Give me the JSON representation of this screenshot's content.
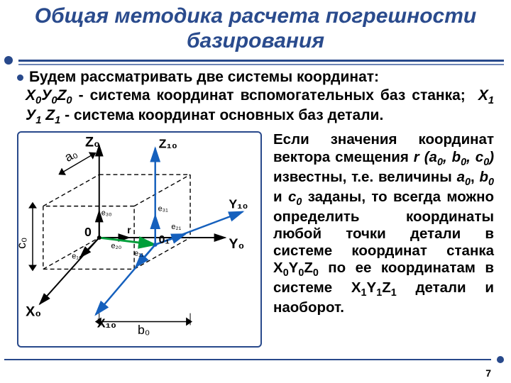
{
  "title": "Общая методика расчета погрешности базирования",
  "bullet": "Будем рассматривать две системы координат:",
  "para_html": "<span class='ital'>X<sub>0</sub>У<sub>0</sub>Z<sub>0</sub></span> - система координат вспомогательных баз станка;&nbsp; <span class='ital'>X<sub>1</sub> У<sub>1</sub> Z<sub>1</sub></span> - система координат основных баз детали.",
  "right_html": "Если значения координат вектора смещения <span class='ital'>r (a<sub>0</sub>, b<sub>0</sub>, c<sub>0</sub>)</span> известны, т.е. величины <span class='ital'>a<sub>0</sub></span>, <span class='ital'>b<sub>0</sub></span> и <span class='ital'>c<sub>0</sub></span> заданы, то всегда можно определить координаты любой точки детали в системе координат станка X<sub>0</sub>Y<sub>0</sub>Z<sub>0</sub> по ее координатам в системе X<sub>1</sub>Y<sub>1</sub>Z<sub>1</sub> детали и наоборот.",
  "page": "7",
  "diagram": {
    "colors": {
      "back_axis": "#000000",
      "fore_axis": "#1560bd",
      "vector_r": "#009e3a",
      "dash": "#000000",
      "bg": "#ffffff"
    },
    "axis0": {
      "zLabel": "Z₀",
      "yLabel": "Y₀",
      "xLabel": "X₀"
    },
    "axis1": {
      "zLabel": "Z₁₀",
      "yLabel": "Y₁₀",
      "xLabel": "X₁₀"
    },
    "origin0": "0",
    "origin1": "0₁",
    "rLabel": "r",
    "e_labels": {
      "e10": "e₁₀",
      "e20": "e₂₀",
      "e30": "e₃₀",
      "e11": "e₁₁",
      "e21": "e₂₁",
      "e31": "e₃₁"
    },
    "dims": {
      "a0": "a₀",
      "b0": "b₀",
      "c0": "c₀"
    }
  }
}
